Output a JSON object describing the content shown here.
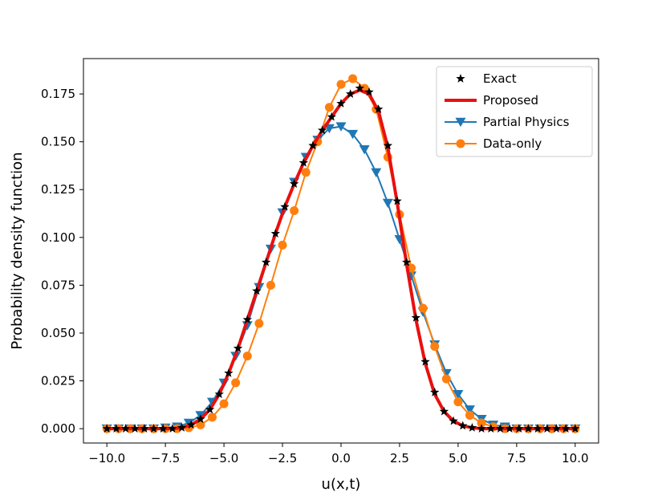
{
  "chart_data": {
    "type": "line",
    "title": "",
    "xlabel": "u(x,t)",
    "ylabel": "Probability density function",
    "xlim": [
      -11.0,
      11.0
    ],
    "ylim": [
      -0.0075,
      0.1935
    ],
    "xticks": [
      -10,
      -7.5,
      -5,
      -2.5,
      0,
      2.5,
      5,
      7.5,
      10
    ],
    "xtick_labels": [
      "−10.0",
      "−7.5",
      "−5.0",
      "−2.5",
      "0.0",
      "2.5",
      "5.0",
      "7.5",
      "10.0"
    ],
    "yticks": [
      0,
      0.025,
      0.05,
      0.075,
      0.1,
      0.125,
      0.15,
      0.175
    ],
    "ytick_labels": [
      "0.000",
      "0.025",
      "0.050",
      "0.075",
      "0.100",
      "0.125",
      "0.150",
      "0.175"
    ],
    "legend_position": "top-right",
    "series": [
      {
        "name": "Exact",
        "color": "#000000",
        "style": "star-markers",
        "x": [
          -10.0,
          -9.6,
          -9.2,
          -8.8,
          -8.4,
          -8.0,
          -7.6,
          -7.2,
          -6.8,
          -6.4,
          -6.0,
          -5.6,
          -5.2,
          -4.8,
          -4.4,
          -4.0,
          -3.6,
          -3.2,
          -2.8,
          -2.4,
          -2.0,
          -1.6,
          -1.2,
          -0.8,
          -0.4,
          0.0,
          0.4,
          0.8,
          1.2,
          1.6,
          2.0,
          2.4,
          2.8,
          3.2,
          3.6,
          4.0,
          4.4,
          4.8,
          5.2,
          5.6,
          6.0,
          6.4,
          6.8,
          7.2,
          7.6,
          8.0,
          8.4,
          8.8,
          9.2,
          9.6,
          10.0
        ],
        "y": [
          0,
          0,
          0,
          0,
          0,
          0,
          0,
          0,
          0.0005,
          0.002,
          0.005,
          0.01,
          0.018,
          0.029,
          0.042,
          0.057,
          0.072,
          0.087,
          0.102,
          0.116,
          0.128,
          0.139,
          0.148,
          0.156,
          0.163,
          0.17,
          0.175,
          0.178,
          0.176,
          0.167,
          0.148,
          0.119,
          0.087,
          0.058,
          0.035,
          0.019,
          0.009,
          0.004,
          0.0015,
          0.0005,
          0,
          0,
          0,
          0,
          0,
          0,
          0,
          0,
          0,
          0,
          0
        ]
      },
      {
        "name": "Proposed",
        "color": "#e8100f",
        "style": "thick-line",
        "x": [
          -10.0,
          -9.6,
          -9.2,
          -8.8,
          -8.4,
          -8.0,
          -7.6,
          -7.2,
          -6.8,
          -6.4,
          -6.0,
          -5.6,
          -5.2,
          -4.8,
          -4.4,
          -4.0,
          -3.6,
          -3.2,
          -2.8,
          -2.4,
          -2.0,
          -1.6,
          -1.2,
          -0.8,
          -0.4,
          0.0,
          0.4,
          0.8,
          1.2,
          1.6,
          2.0,
          2.4,
          2.8,
          3.2,
          3.6,
          4.0,
          4.4,
          4.8,
          5.2,
          5.6,
          6.0,
          6.4,
          6.8,
          7.2,
          7.6,
          8.0,
          8.4,
          8.8,
          9.2,
          9.6,
          10.0
        ],
        "y": [
          0,
          0,
          0,
          0,
          0,
          0,
          0,
          0,
          0.0005,
          0.002,
          0.005,
          0.01,
          0.018,
          0.029,
          0.042,
          0.057,
          0.072,
          0.087,
          0.102,
          0.116,
          0.128,
          0.139,
          0.148,
          0.156,
          0.163,
          0.17,
          0.175,
          0.177,
          0.175,
          0.166,
          0.147,
          0.118,
          0.086,
          0.057,
          0.034,
          0.018,
          0.009,
          0.004,
          0.0015,
          0.0005,
          0,
          0,
          0,
          0,
          0,
          0,
          0,
          0,
          0,
          0,
          0
        ]
      },
      {
        "name": "Partial Physics",
        "color": "#1f77b4",
        "style": "triangle-down-markers",
        "x": [
          -10.0,
          -9.5,
          -9.0,
          -8.5,
          -8.0,
          -7.5,
          -7.0,
          -6.5,
          -6.0,
          -5.5,
          -5.0,
          -4.5,
          -4.0,
          -3.5,
          -3.0,
          -2.5,
          -2.0,
          -1.5,
          -1.0,
          -0.5,
          0.0,
          0.5,
          1.0,
          1.5,
          2.0,
          2.5,
          3.0,
          3.5,
          4.0,
          4.5,
          5.0,
          5.5,
          6.0,
          6.5,
          7.0,
          7.5,
          8.0,
          8.5,
          9.0,
          9.5,
          10.0
        ],
        "y": [
          0,
          0,
          0,
          0,
          0,
          0.0005,
          0.001,
          0.003,
          0.007,
          0.014,
          0.024,
          0.038,
          0.054,
          0.074,
          0.094,
          0.113,
          0.129,
          0.142,
          0.151,
          0.157,
          0.158,
          0.154,
          0.146,
          0.134,
          0.118,
          0.099,
          0.08,
          0.061,
          0.044,
          0.029,
          0.018,
          0.01,
          0.005,
          0.002,
          0.001,
          0,
          0,
          0,
          0,
          0,
          0
        ]
      },
      {
        "name": "Data-only",
        "color": "#ff7f0e",
        "style": "circle-markers",
        "x": [
          -10.0,
          -9.5,
          -9.0,
          -8.5,
          -8.0,
          -7.5,
          -7.0,
          -6.5,
          -6.0,
          -5.5,
          -5.0,
          -4.5,
          -4.0,
          -3.5,
          -3.0,
          -2.5,
          -2.0,
          -1.5,
          -1.0,
          -0.5,
          0.0,
          0.5,
          1.0,
          1.5,
          2.0,
          2.5,
          3.0,
          3.5,
          4.0,
          4.5,
          5.0,
          5.5,
          6.0,
          6.5,
          7.0,
          7.5,
          8.0,
          8.5,
          9.0,
          9.5,
          10.0
        ],
        "y": [
          0,
          0,
          0,
          0,
          0,
          0,
          0,
          0.0005,
          0.002,
          0.006,
          0.013,
          0.024,
          0.038,
          0.055,
          0.075,
          0.096,
          0.114,
          0.134,
          0.15,
          0.168,
          0.18,
          0.183,
          0.178,
          0.167,
          0.142,
          0.112,
          0.084,
          0.063,
          0.043,
          0.026,
          0.014,
          0.007,
          0.003,
          0.001,
          0,
          0,
          0,
          0,
          0,
          0,
          0
        ]
      }
    ]
  }
}
